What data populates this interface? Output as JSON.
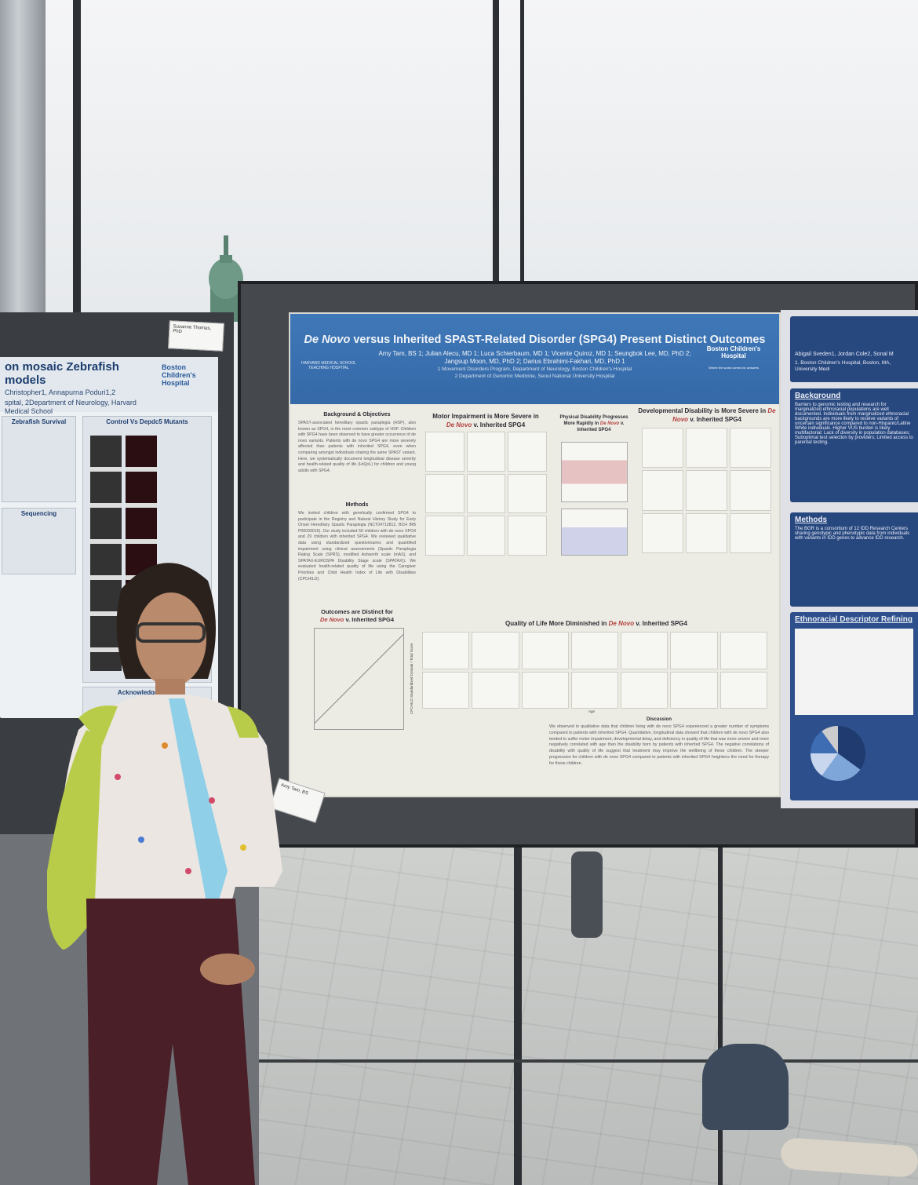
{
  "center_poster": {
    "title_italic": "De Novo",
    "title_rest": " versus Inherited SPAST-Related Disorder (SPG4) Present Distinct Outcomes",
    "authors": "Amy Tam, BS 1; Julian Alecu, MD 1; Luca Schierbaum, MD 1; Vicente Quiroz, MD 1; Seungbok Lee, MD, PhD 2; Jangsup Moon, MD, PhD 2; Darius Ebrahimi-Fakhari, MD, PhD 1",
    "affiliation_1": "1 Movement Disorders Program, Department of Neurology, Boston Children's Hospital",
    "affiliation_2": "2 Department of Genomic Medicine, Seoul National University Hospital",
    "logo_left": "HARVARD MEDICAL SCHOOL TEACHING HOSPITAL",
    "logo_right": "Boston Children's Hospital",
    "logo_right_tagline": "Where the world comes for answers",
    "sections": {
      "background_title": "Background & Objectives",
      "background_text": "SPAST-associated hereditary spastic paraplegia (HSP), also known as SPG4, is the most common subtype of HSP. Children with SPG4 have been observed to have greater occurrence of de novo variants. Patients with de novo SPG4 are more severely affected than patients with inherited SPG4, even when comparing amongst individuals sharing the same SPAST variant. Here, we systematically document longitudinal disease severity and health-related quality of life (HrQoL) for children and young adults with SPG4.",
      "methods_title": "Methods",
      "methods_text": "We invited children with genetically confirmed SPG4 to participate in the Registry and Natural History Study for Early Onset Hereditary Spastic Paraplegia (NCT04712812, BCH IRB P00033016). Our study included 50 children with de novo SPG4 and 29 children with inherited SPG4. We reviewed qualitative data using standardized questionnaires and quantified impairment using clinical assessments (Spastic Paraplegia Rating Scale (SPRS), modified Ashworth scale (mAS), and SPATAX-EUROSPA Disability Stage scale (SPATAX)). We evaluated health-related quality of life using the Caregiver Priorities and Child Health Index of Life with Disabilities (CPCHILD).",
      "motor_title_a": "Motor Impairment is More Severe in",
      "motor_title_b": "De Novo",
      "motor_title_c": " v. Inherited SPG4",
      "physical_title_a": "Physical Disability Progresses More Rapidly in",
      "physical_title_b": "De Novo",
      "physical_title_c": " v. Inherited SPG4",
      "dev_title_a": "Developmental Disability is More Severe in ",
      "dev_title_b": "De Novo",
      "dev_title_c": " v. Inherited SPG4",
      "outcomes_title_a": "Outcomes are Distinct for",
      "outcomes_title_b": "De Novo",
      "outcomes_title_c": " v. Inherited SPG4",
      "qol_title_a": "Quality of Life More Diminished in ",
      "qol_title_b": "De Novo",
      "qol_title_c": " v. Inherited SPG4",
      "qol_xlabel": "Age",
      "qol_ylabel": "CPCHILD Standardized Domain / Total Score",
      "discussion_title": "Discussion",
      "discussion_text": "We observed in qualitative data that children living with de novo SPG4 experienced a greater number of symptoms compared to patients with inherited SPG4. Quantitative, longitudinal data showed that children with de novo SPG4 also tended to suffer motor impairment, developmental delay, and deficiency in quality of life that was more severe and more negatively correlated with age than the disability born by patients with inherited SPG4. The negative correlations of disability with quality of life suggest that treatment may improve the wellbeing of these children. The steeper progression for children with de novo SPG4 compared to patients with inherited SPG4 heightens the need for therapy for these children."
    }
  },
  "left_poster": {
    "title": "on mosaic Zebrafish models",
    "authors": "Christopher1, Annapurna Poduri1,2",
    "affiliation": "spital, 2Department of Neurology, Harvard Medical School",
    "logo": "Boston Children's Hospital",
    "name_card": "Suzanne Thomas, PhD",
    "section_survival": "Zebrafish Survival",
    "section_control": "Control Vs Depdc5 Mutants",
    "section_sequencing": "Sequencing",
    "section_ack": "Acknowledgements"
  },
  "right_poster": {
    "authors": "Abigail Sveden1, Jordan Cole2, Sonal M",
    "affiliation": "1. Boston Children's Hospital, Boston, MA, University Medi",
    "background_title": "Background",
    "background_text": "Barriers to genomic testing and research for marginalized ethnoracial populations are well documented. Individuals from marginalized ethnoracial backgrounds are more likely to receive variants of uncertain significance compared to non-Hispanic/Latine White individuals. Higher VUS burden is likely multifactorial: Lack of diversity in population databases; Suboptimal test selection by providers; Limited access to parental testing.",
    "methods_title": "Methods",
    "methods_text": "The BGR is a consortium of 12 IDD Research Centers sharing genotypic and phenotypic data from individuals with variants in IDD genes to advance IDD research.",
    "ethno_title": "Ethnoracial Descriptor Refining"
  },
  "center_name_card": "Amy Tam, BS"
}
